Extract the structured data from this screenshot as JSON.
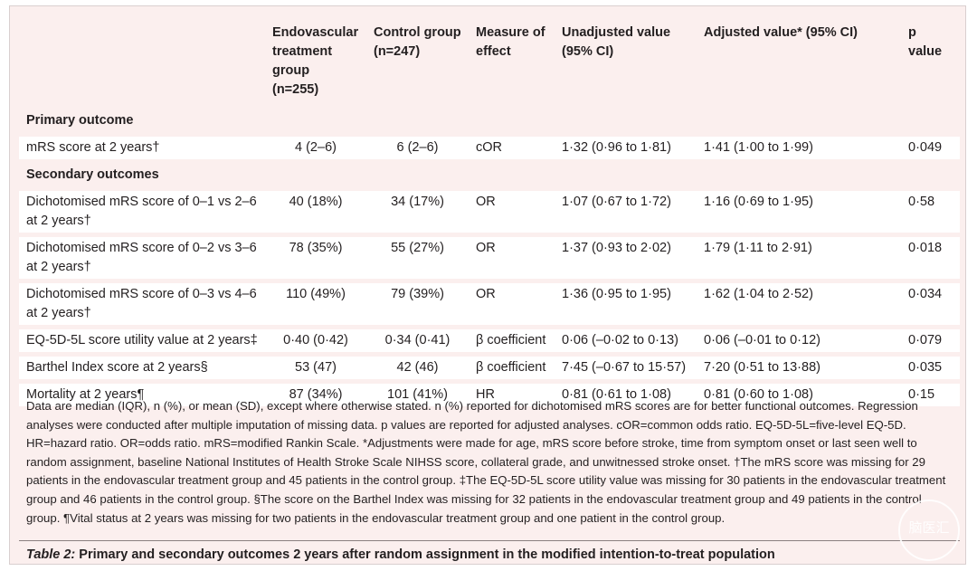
{
  "header": {
    "columns": [
      "Endovascular treatment group (n=255)",
      "Control group (n=247)",
      "Measure of effect",
      "Unadjusted value (95% CI)",
      "Adjusted value* (95% CI)",
      "p value"
    ]
  },
  "sections": [
    {
      "title": "Primary outcome",
      "rows": [
        [
          "mRS score at 2 years†",
          "4 (2–6)",
          "6 (2–6)",
          "cOR",
          "1·32 (0·96 to 1·81)",
          "1·41 (1·00 to 1·99)",
          "0·049"
        ]
      ]
    },
    {
      "title": "Secondary outcomes",
      "rows": [
        [
          "Dichotomised mRS score of 0–1 vs 2–6 at 2 years†",
          "40 (18%)",
          "34 (17%)",
          "OR",
          "1·07 (0·67 to 1·72)",
          "1·16 (0·69 to 1·95)",
          "0·58"
        ],
        [
          "Dichotomised mRS score of 0–2 vs 3–6 at 2 years†",
          "78 (35%)",
          "55 (27%)",
          "OR",
          "1·37 (0·93 to 2·02)",
          "1·79 (1·11 to 2·91)",
          "0·018"
        ],
        [
          "Dichotomised mRS score of 0–3 vs 4–6 at 2 years†",
          "110 (49%)",
          "79 (39%)",
          "OR",
          "1·36 (0·95 to 1·95)",
          "1·62 (1·04 to 2·52)",
          "0·034"
        ],
        [
          "EQ-5D-5L score utility value at 2 years‡",
          "0·40 (0·42)",
          "0·34 (0·41)",
          "β coefficient",
          "0·06 (–0·02 to 0·13)",
          "0·06 (–0·01 to 0·12)",
          "0·079"
        ],
        [
          "Barthel Index score at 2 years§",
          "53 (47)",
          "42 (46)",
          "β coefficient",
          "7·45 (–0·67 to 15·57)",
          "7·20 (0·51 to 13·88)",
          "0·035"
        ],
        [
          "Mortality at 2 years¶",
          "87 (34%)",
          "101 (41%)",
          "HR",
          "0·81 (0·61 to 1·08)",
          "0·81 (0·60 to 1·08)",
          "0·15"
        ]
      ]
    }
  ],
  "footnote": "Data are median (IQR), n (%), or mean (SD), except where otherwise stated. n (%) reported for dichotomised mRS scores are for better functional outcomes. Regression analyses were conducted after multiple imputation of missing data. p values are reported for adjusted analyses. cOR=common odds ratio. EQ-5D-5L=five-level EQ-5D. HR=hazard ratio. OR=odds ratio. mRS=modified Rankin Scale. *Adjustments were made for age, mRS score before stroke, time from symptom onset or last seen well to random assignment, baseline National Institutes of Health Stroke Scale NIHSS score, collateral grade, and unwitnessed stroke onset. †The mRS score was missing for 29 patients in the endovascular treatment group and 45 patients in the control group. ‡The EQ-5D-5L score utility value was missing for 30 patients in the endovascular treatment group and 46 patients in the control group. §The score on the Barthel Index was missing for 32 patients in the endovascular treatment group and 49 patients in the control group. ¶Vital status at 2 years was missing for two patients in the endovascular treatment group and one patient in the control group.",
  "caption": {
    "label": "Table 2:",
    "text": "Primary and secondary outcomes 2 years after random assignment in the modified intention-to-treat population"
  },
  "watermark": "脑医汇"
}
